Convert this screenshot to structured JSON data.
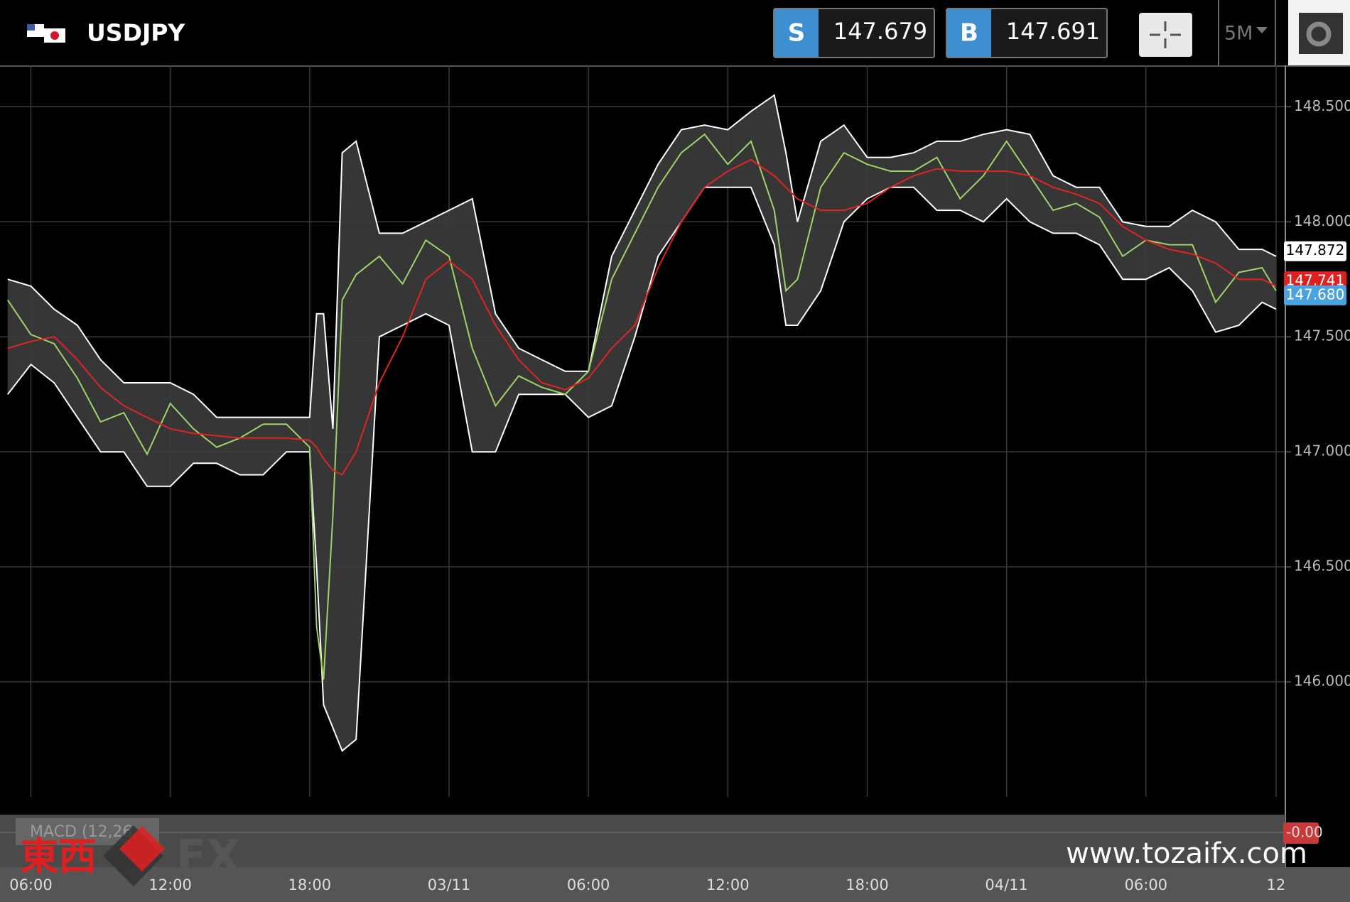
{
  "header": {
    "symbol": "USDJPY",
    "sell": {
      "label": "S",
      "price": 147.679
    },
    "buy": {
      "label": "B",
      "price": 147.691
    },
    "timeframe": "5M"
  },
  "chart_data": {
    "type": "line",
    "x": [
      -1,
      0,
      1,
      2,
      3,
      4,
      5,
      6,
      7,
      8,
      9,
      10,
      11,
      12,
      12.3,
      12.6,
      13.0,
      13.4,
      14,
      15,
      16,
      17,
      18,
      19,
      20,
      21,
      22,
      23,
      24,
      25,
      26,
      27,
      28,
      29,
      30,
      31,
      32,
      32.5,
      33,
      34,
      35,
      36,
      37,
      38,
      39,
      40,
      41,
      42,
      43,
      44,
      45,
      46,
      47,
      48,
      49,
      50,
      51,
      52,
      53,
      53.6
    ],
    "xlim": [
      -1.33,
      54.0
    ],
    "xticks": [
      {
        "value": 0,
        "label": "06:00"
      },
      {
        "value": 6,
        "label": "12:00"
      },
      {
        "value": 12,
        "label": "18:00"
      },
      {
        "value": 18,
        "label": "03/11"
      },
      {
        "value": 24,
        "label": "06:00"
      },
      {
        "value": 30,
        "label": "12:00"
      },
      {
        "value": 36,
        "label": "18:00"
      },
      {
        "value": 42,
        "label": "04/11"
      },
      {
        "value": 48,
        "label": "06:00"
      },
      {
        "value": 53.6,
        "label": "12"
      }
    ],
    "ylim": [
      145.5,
      148.68
    ],
    "yticks": [
      {
        "value": 146,
        "label": "146.000"
      },
      {
        "value": 146.5,
        "label": "146.500"
      },
      {
        "value": 147,
        "label": "147.000"
      },
      {
        "value": 147.5,
        "label": "147.500"
      },
      {
        "value": 148,
        "label": "148.000"
      },
      {
        "value": 148.5,
        "label": "148.500"
      }
    ],
    "grid": true,
    "band": {
      "color": "#3c3c3c",
      "line_color": "#ffffff",
      "upper": [
        147.75,
        147.72,
        147.62,
        147.55,
        147.4,
        147.3,
        147.3,
        147.3,
        147.25,
        147.15,
        147.15,
        147.15,
        147.15,
        147.15,
        147.6,
        147.6,
        147.1,
        148.3,
        148.35,
        147.95,
        147.95,
        148.0,
        148.05,
        148.1,
        147.6,
        147.45,
        147.4,
        147.35,
        147.35,
        147.85,
        148.05,
        148.25,
        148.4,
        148.42,
        148.4,
        148.48,
        148.55,
        148.3,
        148.0,
        148.35,
        148.42,
        148.28,
        148.28,
        148.3,
        148.35,
        148.35,
        148.38,
        148.4,
        148.38,
        148.2,
        148.15,
        148.15,
        148.0,
        147.98,
        147.98,
        148.05,
        148.0,
        147.88,
        147.88,
        147.85
      ],
      "lower": [
        147.25,
        147.38,
        147.3,
        147.15,
        147.0,
        147.0,
        146.85,
        146.85,
        146.95,
        146.95,
        146.9,
        146.9,
        147.0,
        147.0,
        146.5,
        145.9,
        145.8,
        145.7,
        145.75,
        147.5,
        147.55,
        147.6,
        147.55,
        147.0,
        147.0,
        147.25,
        147.25,
        147.25,
        147.15,
        147.2,
        147.5,
        147.85,
        148.0,
        148.15,
        148.15,
        148.15,
        147.9,
        147.55,
        147.55,
        147.7,
        148.0,
        148.1,
        148.15,
        148.15,
        148.05,
        148.05,
        148.0,
        148.1,
        148.0,
        147.95,
        147.95,
        147.9,
        147.75,
        147.75,
        147.8,
        147.7,
        147.52,
        147.55,
        147.65,
        147.62
      ]
    },
    "series": [
      {
        "color": "#9ed36a",
        "values": [
          147.66,
          147.51,
          147.47,
          147.32,
          147.13,
          147.17,
          146.99,
          147.21,
          147.1,
          147.02,
          147.06,
          147.12,
          147.12,
          147.02,
          146.24,
          146.01,
          146.72,
          147.66,
          147.77,
          147.85,
          147.73,
          147.92,
          147.85,
          147.45,
          147.2,
          147.33,
          147.28,
          147.25,
          147.35,
          147.75,
          147.95,
          148.15,
          148.3,
          148.38,
          148.25,
          148.35,
          148.05,
          147.7,
          147.75,
          148.15,
          148.3,
          148.25,
          148.22,
          148.22,
          148.28,
          148.1,
          148.2,
          148.35,
          148.2,
          148.05,
          148.08,
          148.02,
          147.85,
          147.92,
          147.9,
          147.9,
          147.65,
          147.78,
          147.8,
          147.7
        ]
      },
      {
        "color": "#e02424",
        "values": [
          147.45,
          147.48,
          147.5,
          147.4,
          147.28,
          147.2,
          147.15,
          147.1,
          147.08,
          147.07,
          147.06,
          147.06,
          147.06,
          147.05,
          147.02,
          146.97,
          146.92,
          146.9,
          147.0,
          147.3,
          147.5,
          147.75,
          147.83,
          147.75,
          147.55,
          147.4,
          147.3,
          147.27,
          147.32,
          147.45,
          147.55,
          147.8,
          148.0,
          148.15,
          148.22,
          148.27,
          148.2,
          148.15,
          148.1,
          148.05,
          148.05,
          148.08,
          148.15,
          148.2,
          148.23,
          148.22,
          148.22,
          148.22,
          148.2,
          148.15,
          148.12,
          148.08,
          147.98,
          147.92,
          147.88,
          147.86,
          147.82,
          147.75,
          147.75,
          147.72
        ]
      }
    ],
    "price_tags": [
      {
        "value": 147.872,
        "label": "147.872",
        "color": "#ffffff",
        "text_color": "#000000"
      },
      {
        "value": 147.741,
        "label": "147.741",
        "color": "#e02020",
        "text_color": "#ffffff"
      },
      {
        "value": 147.68,
        "label": "147.680",
        "color": "#4aa3df",
        "text_color": "#ffffff"
      }
    ]
  },
  "macd": {
    "label": "MACD (12,26",
    "value_label": "-0.00"
  },
  "watermark": {
    "brand": "東西",
    "fx": "FX",
    "url": "www.tozaifx.com"
  }
}
